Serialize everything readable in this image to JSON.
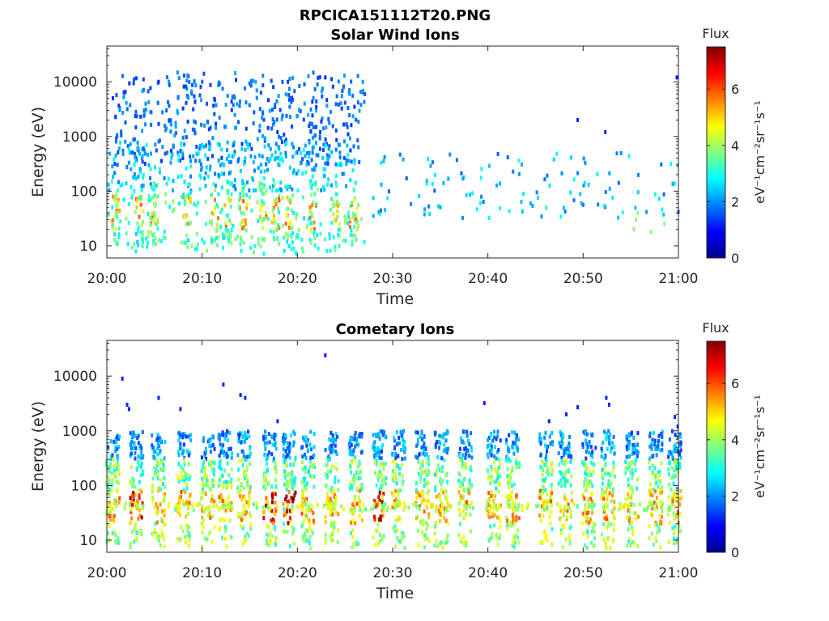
{
  "figure_title": "RPCICA151112T20.PNG",
  "colorscale": [
    "#00008f",
    "#0000ff",
    "#0080ff",
    "#00ffff",
    "#80ff80",
    "#ffff00",
    "#ff8000",
    "#ff0000",
    "#800000"
  ],
  "chart_data": [
    {
      "type": "heatmap",
      "title": "Solar Wind Ions",
      "xlabel": "Time",
      "ylabel": "Energy (eV)",
      "x_ticks": [
        "20:00",
        "20:10",
        "20:20",
        "20:30",
        "20:40",
        "20:50",
        "21:00"
      ],
      "x_range_minutes": [
        0,
        60
      ],
      "y_scale": "log",
      "y_ticks": [
        "10",
        "100",
        "1000",
        "10000"
      ],
      "ylim": [
        6,
        45000
      ],
      "colorbar": {
        "label": "Flux",
        "units": "eV⁻¹cm⁻²sr⁻¹s⁻¹",
        "ticks": [
          "0",
          "2",
          "4",
          "6"
        ],
        "range": [
          0,
          7.5
        ]
      },
      "description_values": {
        "active_interval_minutes": [
          0,
          27
        ],
        "high_energy_population_eV": [
          300,
          15000
        ],
        "low_energy_band_eV": [
          10,
          150
        ]
      }
    },
    {
      "type": "heatmap",
      "title": "Cometary Ions",
      "xlabel": "Time",
      "ylabel": "Energy (eV)",
      "x_ticks": [
        "20:00",
        "20:10",
        "20:20",
        "20:30",
        "20:40",
        "20:50",
        "21:00"
      ],
      "x_range_minutes": [
        0,
        60
      ],
      "y_scale": "log",
      "y_ticks": [
        "10",
        "100",
        "1000",
        "10000"
      ],
      "ylim": [
        6,
        45000
      ],
      "colorbar": {
        "label": "Flux",
        "units": "eV⁻¹cm⁻²sr⁻¹s⁻¹",
        "ticks": [
          "0",
          "2",
          "4",
          "6"
        ],
        "range": [
          0,
          7.5
        ]
      },
      "description_values": {
        "burst_times_minutes": [
          0.5,
          3,
          5.3,
          8,
          10.5,
          12.3,
          14.3,
          17,
          19,
          21,
          23.5,
          26,
          28.5,
          30.5,
          33,
          35,
          37.5,
          40.5,
          42.5,
          46,
          48,
          50.5,
          52.5,
          55,
          57.5,
          59.5
        ],
        "peak_flux_energy_eV": [
          20,
          80
        ]
      }
    }
  ]
}
